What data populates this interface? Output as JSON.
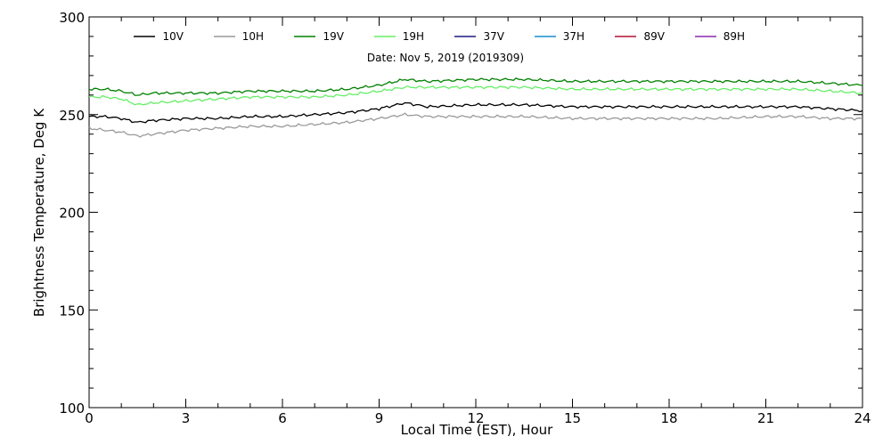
{
  "chart_data": {
    "type": "line",
    "annotation": "Date: Nov  5, 2019 (2019309)",
    "xlabel": "Local Time (EST), Hour",
    "ylabel": "Brightness Temperature, Deg  K",
    "xlim": [
      0,
      24
    ],
    "ylim": [
      100,
      300
    ],
    "x_ticks": [
      0,
      3,
      6,
      9,
      12,
      15,
      18,
      21,
      24
    ],
    "y_ticks": [
      100,
      150,
      200,
      250,
      300
    ],
    "grid": false,
    "legend_position": "top",
    "series": [
      {
        "name": "10V",
        "color": "#000000",
        "points": [
          [
            0,
            249
          ],
          [
            0.5,
            249
          ],
          [
            1,
            248
          ],
          [
            1.5,
            246
          ],
          [
            2,
            247
          ],
          [
            3,
            248
          ],
          [
            4,
            248
          ],
          [
            5,
            249
          ],
          [
            6,
            249
          ],
          [
            7,
            250
          ],
          [
            8,
            251
          ],
          [
            9,
            253
          ],
          [
            9.8,
            256
          ],
          [
            10.5,
            254
          ],
          [
            12,
            255
          ],
          [
            13.5,
            255
          ],
          [
            15,
            254
          ],
          [
            16.5,
            254
          ],
          [
            18,
            254
          ],
          [
            19.5,
            254
          ],
          [
            21,
            254
          ],
          [
            22,
            254
          ],
          [
            23,
            253
          ],
          [
            24,
            252
          ]
        ]
      },
      {
        "name": "10H",
        "color": "#999999",
        "points": [
          [
            0,
            243
          ],
          [
            0.5,
            242
          ],
          [
            1,
            241
          ],
          [
            1.5,
            239
          ],
          [
            2,
            240
          ],
          [
            3,
            242
          ],
          [
            4,
            243
          ],
          [
            5,
            244
          ],
          [
            6,
            244
          ],
          [
            7,
            245
          ],
          [
            8,
            246
          ],
          [
            9,
            248
          ],
          [
            9.8,
            250
          ],
          [
            10.5,
            249
          ],
          [
            12,
            249
          ],
          [
            13.5,
            249
          ],
          [
            15,
            248
          ],
          [
            16.5,
            248
          ],
          [
            18,
            248
          ],
          [
            19.5,
            248
          ],
          [
            21,
            249
          ],
          [
            22,
            249
          ],
          [
            23,
            248
          ],
          [
            24,
            248
          ]
        ]
      },
      {
        "name": "19V",
        "color": "#008000",
        "points": [
          [
            0,
            263
          ],
          [
            0.5,
            263
          ],
          [
            1,
            262
          ],
          [
            1.5,
            260
          ],
          [
            2,
            261
          ],
          [
            3,
            261
          ],
          [
            4,
            261
          ],
          [
            5,
            262
          ],
          [
            6,
            262
          ],
          [
            7,
            262
          ],
          [
            8,
            263
          ],
          [
            9,
            265
          ],
          [
            9.8,
            268
          ],
          [
            10.5,
            267
          ],
          [
            12,
            268
          ],
          [
            13.5,
            268
          ],
          [
            15,
            267
          ],
          [
            16.5,
            267
          ],
          [
            18,
            267
          ],
          [
            19.5,
            267
          ],
          [
            21,
            267
          ],
          [
            22,
            267
          ],
          [
            23,
            266
          ],
          [
            24,
            265
          ]
        ]
      },
      {
        "name": "19H",
        "color": "#66ee66",
        "points": [
          [
            0,
            259
          ],
          [
            0.5,
            259
          ],
          [
            1,
            258
          ],
          [
            1.5,
            255
          ],
          [
            2,
            256
          ],
          [
            3,
            257
          ],
          [
            4,
            258
          ],
          [
            5,
            259
          ],
          [
            6,
            259
          ],
          [
            7,
            259
          ],
          [
            8,
            260
          ],
          [
            9,
            262
          ],
          [
            9.8,
            264
          ],
          [
            10.5,
            264
          ],
          [
            12,
            264
          ],
          [
            13.5,
            264
          ],
          [
            15,
            263
          ],
          [
            16.5,
            263
          ],
          [
            18,
            263
          ],
          [
            19.5,
            263
          ],
          [
            21,
            263
          ],
          [
            22,
            263
          ],
          [
            23,
            262
          ],
          [
            24,
            261
          ]
        ]
      },
      {
        "name": "37V",
        "color": "#1a1a80",
        "points": []
      },
      {
        "name": "37H",
        "color": "#1a8ccc",
        "points": []
      },
      {
        "name": "89V",
        "color": "#b01030",
        "points": []
      },
      {
        "name": "89H",
        "color": "#8a2ab0",
        "points": []
      }
    ]
  }
}
